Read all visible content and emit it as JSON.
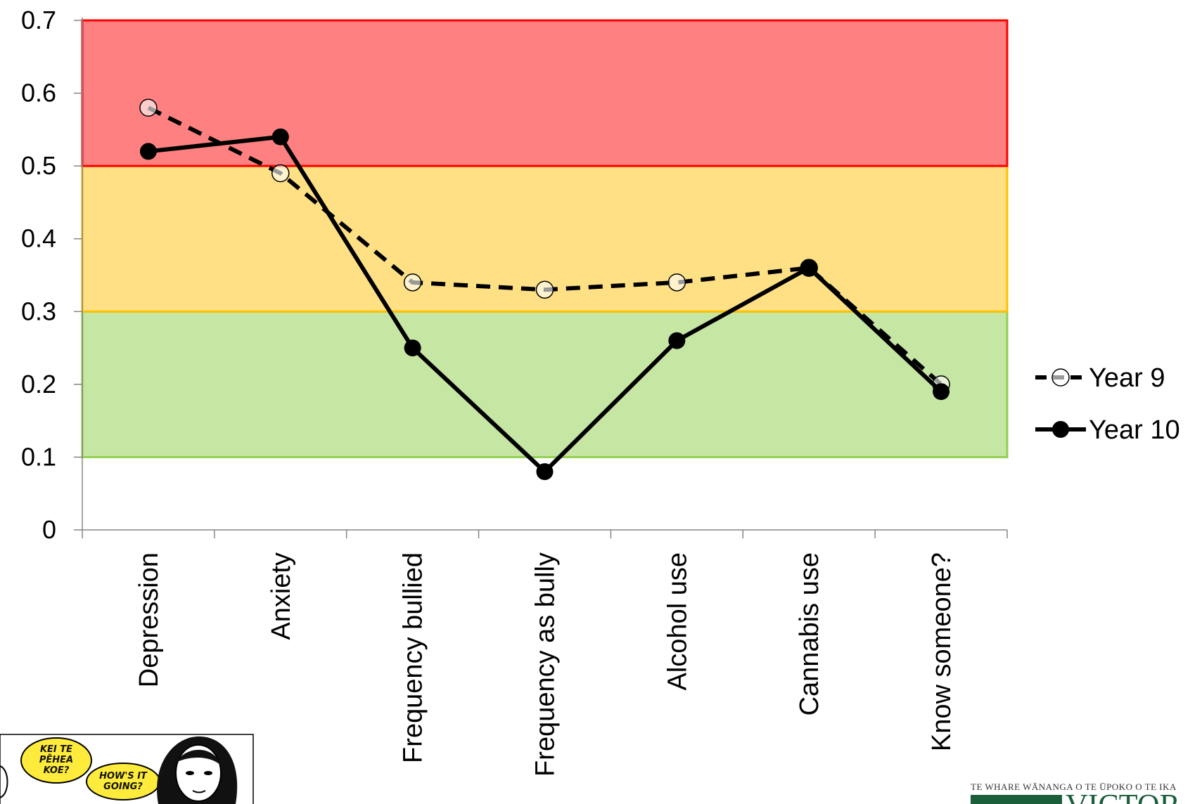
{
  "chart_data": {
    "type": "line",
    "categories": [
      "Depression",
      "Anxiety",
      "Frequency bullied",
      "Frequency as bully",
      "Alcohol use",
      "Cannabis use",
      "Know someone?"
    ],
    "series": [
      {
        "name": "Year 9",
        "values": [
          0.58,
          0.49,
          0.34,
          0.33,
          0.34,
          0.36,
          0.2
        ],
        "style": "dashed",
        "marker": "open-circle",
        "color": "#000000"
      },
      {
        "name": "Year 10",
        "values": [
          0.52,
          0.54,
          0.25,
          0.08,
          0.26,
          0.36,
          0.19
        ],
        "style": "solid",
        "marker": "filled-circle",
        "color": "#000000"
      }
    ],
    "title": "",
    "xlabel": "",
    "ylabel": "",
    "ylim": [
      0,
      0.7
    ],
    "yticks": [
      "0",
      "0.1",
      "0.2",
      "0.3",
      "0.4",
      "0.5",
      "0.6",
      "0.7"
    ],
    "grid": false,
    "legend": "right",
    "bands": [
      {
        "from": 0.1,
        "to": 0.3,
        "fill": "#c6e6a4",
        "stroke": "#92d050"
      },
      {
        "from": 0.3,
        "to": 0.5,
        "fill": "#ffe085",
        "stroke": "#ffc000"
      },
      {
        "from": 0.5,
        "to": 0.7,
        "fill": "#ff8080",
        "stroke": "#ff0000"
      }
    ]
  },
  "footer": {
    "institution_line": "TE WHARE WĀNANGA O TE ŪPOKO O TE IKA",
    "institution_name": "VICTOR",
    "bubble1": [
      "KEI TE",
      "PĒHEA",
      "KOE?"
    ],
    "bubble2": [
      "HOW'S IT",
      "GOING?"
    ]
  }
}
